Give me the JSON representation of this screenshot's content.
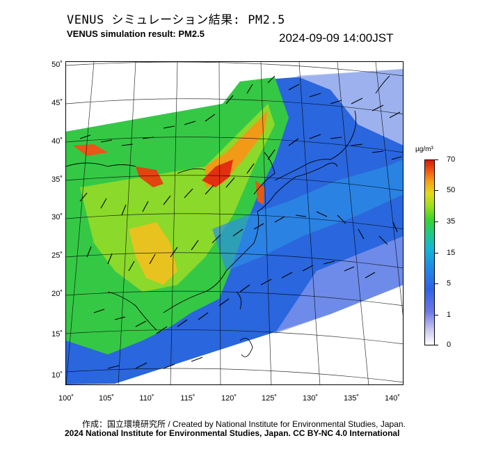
{
  "header": {
    "title_jp": "VENUS シミュレーション結果: PM2.5",
    "title_en": "VENUS simulation result: PM2.5",
    "timestamp": "2024-09-09 14:00JST"
  },
  "map": {
    "lat_labels": [
      "50˚",
      "45˚",
      "40˚",
      "35˚",
      "30˚",
      "25˚",
      "20˚",
      "15˚",
      "10˚"
    ],
    "lon_labels": [
      "100˚",
      "105˚",
      "110˚",
      "115˚",
      "120˚",
      "125˚",
      "130˚",
      "135˚",
      "140˚"
    ]
  },
  "colorbar": {
    "unit": "µg/m³",
    "ticks": [
      "70",
      "50",
      "35",
      "15",
      "5",
      "1",
      "0"
    ]
  },
  "footer": {
    "credit_line1": "作成：国立環境研究所 / Created by National Institute for Environmental Studies, Japan.",
    "credit_line2": "2024 National Institute for Environmental Studies, Japan. CC BY-NC 4.0 International"
  },
  "colors": {
    "ocean_blue": "#1e6fe0",
    "land_green": "#3fc83a",
    "high_red": "#e0300f",
    "pale_blue": "#b8c8f5"
  }
}
